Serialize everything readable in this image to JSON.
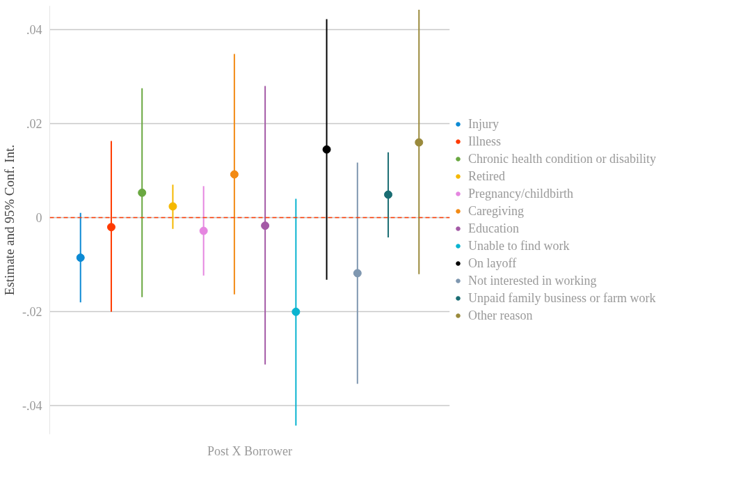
{
  "chart_data": {
    "type": "scatter",
    "ylabel": "Estimate and 95% Conf. Int.",
    "annotations": [
      "Post X Borrower"
    ],
    "categories": [
      null,
      null,
      null,
      null,
      null,
      null,
      null,
      null,
      null,
      null,
      null,
      null
    ],
    "ylim": [
      -0.046,
      0.045
    ],
    "yticks": [
      {
        "value": -0.04,
        "label": "-.04"
      },
      {
        "value": -0.02,
        "label": "-.02"
      },
      {
        "value": 0,
        "label": "0"
      },
      {
        "value": 0.02,
        "label": ".02"
      },
      {
        "value": 0.04,
        "label": ".04"
      }
    ],
    "grid": "y",
    "legend": "right",
    "marker": "circle",
    "ref_lines": [
      {
        "axis": "y",
        "value": 0,
        "color": "#ff3a00",
        "line_style": "dashed"
      }
    ],
    "series": [
      {
        "name": "Injury",
        "color": "#0c8ad4",
        "values": [
          -0.0085,
          null,
          null,
          null,
          null,
          null,
          null,
          null,
          null,
          null,
          null,
          null
        ],
        "errors": [
          [
            -0.018,
            0.001
          ],
          null,
          null,
          null,
          null,
          null,
          null,
          null,
          null,
          null,
          null,
          null
        ]
      },
      {
        "name": "Illness",
        "color": "#ff3a00",
        "values": [
          null,
          -0.002,
          null,
          null,
          null,
          null,
          null,
          null,
          null,
          null,
          null,
          null
        ],
        "errors": [
          null,
          [
            -0.02,
            0.0163
          ],
          null,
          null,
          null,
          null,
          null,
          null,
          null,
          null,
          null,
          null
        ]
      },
      {
        "name": "Chronic health condition or disability",
        "color": "#6aa841",
        "values": [
          null,
          null,
          0.0053,
          null,
          null,
          null,
          null,
          null,
          null,
          null,
          null,
          null
        ],
        "errors": [
          null,
          null,
          [
            -0.0169,
            0.0275
          ],
          null,
          null,
          null,
          null,
          null,
          null,
          null,
          null,
          null
        ]
      },
      {
        "name": "Retired",
        "color": "#f5b800",
        "values": [
          null,
          null,
          null,
          0.0024,
          null,
          null,
          null,
          null,
          null,
          null,
          null,
          null
        ],
        "errors": [
          null,
          null,
          null,
          [
            -0.0024,
            0.007
          ],
          null,
          null,
          null,
          null,
          null,
          null,
          null,
          null
        ]
      },
      {
        "name": "Pregnancy/childbirth",
        "color": "#e586e0",
        "values": [
          null,
          null,
          null,
          null,
          -0.0028,
          null,
          null,
          null,
          null,
          null,
          null,
          null
        ],
        "errors": [
          null,
          null,
          null,
          null,
          [
            -0.0123,
            0.0067
          ],
          null,
          null,
          null,
          null,
          null,
          null,
          null
        ]
      },
      {
        "name": "Caregiving",
        "color": "#f28a14",
        "values": [
          null,
          null,
          null,
          null,
          null,
          0.0092,
          null,
          null,
          null,
          null,
          null,
          null
        ],
        "errors": [
          null,
          null,
          null,
          null,
          null,
          [
            -0.0163,
            0.0348
          ],
          null,
          null,
          null,
          null,
          null,
          null
        ]
      },
      {
        "name": "Education",
        "color": "#a45aa6",
        "values": [
          null,
          null,
          null,
          null,
          null,
          null,
          -0.0017,
          null,
          null,
          null,
          null,
          null
        ],
        "errors": [
          null,
          null,
          null,
          null,
          null,
          null,
          [
            -0.0312,
            0.028
          ],
          null,
          null,
          null,
          null,
          null
        ]
      },
      {
        "name": "Unable to find work",
        "color": "#0ab4d0",
        "values": [
          null,
          null,
          null,
          null,
          null,
          null,
          null,
          -0.02,
          null,
          null,
          null,
          null
        ],
        "errors": [
          null,
          null,
          null,
          null,
          null,
          null,
          null,
          [
            -0.0442,
            0.004
          ],
          null,
          null,
          null,
          null
        ]
      },
      {
        "name": "On layoff",
        "color": "#000000",
        "values": [
          null,
          null,
          null,
          null,
          null,
          null,
          null,
          null,
          0.0145,
          null,
          null,
          null
        ],
        "errors": [
          null,
          null,
          null,
          null,
          null,
          null,
          null,
          null,
          [
            -0.0132,
            0.0422
          ],
          null,
          null,
          null
        ]
      },
      {
        "name": "Not interested in working",
        "color": "#7f97b0",
        "values": [
          null,
          null,
          null,
          null,
          null,
          null,
          null,
          null,
          null,
          -0.0118,
          null,
          null
        ],
        "errors": [
          null,
          null,
          null,
          null,
          null,
          null,
          null,
          null,
          null,
          [
            -0.0353,
            0.0117
          ],
          null,
          null
        ]
      },
      {
        "name": "Unpaid family business or farm work",
        "color": "#1a6d73",
        "values": [
          null,
          null,
          null,
          null,
          null,
          null,
          null,
          null,
          null,
          null,
          0.0049,
          null
        ],
        "errors": [
          null,
          null,
          null,
          null,
          null,
          null,
          null,
          null,
          null,
          null,
          [
            -0.0042,
            0.0139
          ],
          null
        ]
      },
      {
        "name": "Other reason",
        "color": "#9a8a3c",
        "values": [
          null,
          null,
          null,
          null,
          null,
          null,
          null,
          null,
          null,
          null,
          null,
          0.016
        ],
        "errors": [
          null,
          null,
          null,
          null,
          null,
          null,
          null,
          null,
          null,
          null,
          null,
          [
            -0.012,
            0.0442
          ]
        ]
      }
    ]
  }
}
